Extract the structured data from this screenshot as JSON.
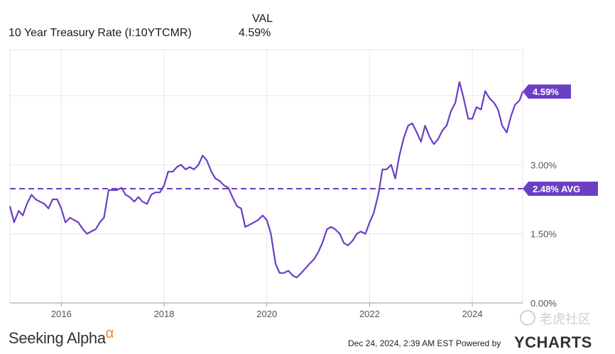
{
  "header": {
    "val_label": "VAL",
    "series_name": "10 Year Treasury Rate (I:10YTCMR)",
    "last_value_label": "4.59%"
  },
  "chart_data": {
    "type": "line",
    "title": "10 Year Treasury Rate (I:10YTCMR)",
    "xlabel": "",
    "ylabel": "",
    "x_ticks": [
      "2016",
      "2018",
      "2020",
      "2022",
      "2024"
    ],
    "y_ticks": [
      "0.00%",
      "1.50%",
      "3.00%"
    ],
    "xlim": [
      2015.0,
      2024.98
    ],
    "ylim": [
      0,
      5.5
    ],
    "series": [
      {
        "name": "10 Year Treasury Rate",
        "color": "#6a3fc4",
        "x": [
          2015.0,
          2015.08,
          2015.17,
          2015.25,
          2015.33,
          2015.42,
          2015.5,
          2015.58,
          2015.67,
          2015.75,
          2015.83,
          2015.92,
          2016.0,
          2016.08,
          2016.17,
          2016.25,
          2016.33,
          2016.42,
          2016.5,
          2016.58,
          2016.67,
          2016.75,
          2016.83,
          2016.92,
          2017.0,
          2017.08,
          2017.17,
          2017.25,
          2017.33,
          2017.42,
          2017.5,
          2017.58,
          2017.67,
          2017.75,
          2017.83,
          2017.92,
          2018.0,
          2018.08,
          2018.17,
          2018.25,
          2018.33,
          2018.42,
          2018.5,
          2018.58,
          2018.67,
          2018.75,
          2018.83,
          2018.92,
          2019.0,
          2019.08,
          2019.17,
          2019.25,
          2019.33,
          2019.42,
          2019.5,
          2019.58,
          2019.67,
          2019.75,
          2019.83,
          2019.92,
          2020.0,
          2020.08,
          2020.17,
          2020.25,
          2020.33,
          2020.42,
          2020.5,
          2020.58,
          2020.67,
          2020.75,
          2020.83,
          2020.92,
          2021.0,
          2021.08,
          2021.17,
          2021.25,
          2021.33,
          2021.42,
          2021.5,
          2021.58,
          2021.67,
          2021.75,
          2021.83,
          2021.92,
          2022.0,
          2022.08,
          2022.17,
          2022.25,
          2022.33,
          2022.42,
          2022.5,
          2022.58,
          2022.67,
          2022.75,
          2022.83,
          2022.92,
          2023.0,
          2023.08,
          2023.17,
          2023.25,
          2023.33,
          2023.42,
          2023.5,
          2023.58,
          2023.67,
          2023.75,
          2023.83,
          2023.92,
          2024.0,
          2024.08,
          2024.17,
          2024.25,
          2024.33,
          2024.42,
          2024.5,
          2024.58,
          2024.67,
          2024.75,
          2024.83,
          2024.92,
          2024.98
        ],
        "values": [
          2.1,
          1.75,
          2.0,
          1.9,
          2.15,
          2.35,
          2.25,
          2.2,
          2.15,
          2.05,
          2.25,
          2.25,
          2.05,
          1.75,
          1.85,
          1.8,
          1.75,
          1.6,
          1.5,
          1.55,
          1.6,
          1.75,
          1.85,
          2.45,
          2.45,
          2.45,
          2.5,
          2.35,
          2.3,
          2.2,
          2.3,
          2.2,
          2.15,
          2.35,
          2.4,
          2.4,
          2.55,
          2.85,
          2.85,
          2.95,
          3.0,
          2.9,
          2.95,
          2.9,
          3.0,
          3.2,
          3.1,
          2.85,
          2.7,
          2.65,
          2.55,
          2.5,
          2.3,
          2.1,
          2.05,
          1.65,
          1.7,
          1.75,
          1.8,
          1.9,
          1.8,
          1.5,
          0.85,
          0.65,
          0.65,
          0.7,
          0.6,
          0.55,
          0.65,
          0.75,
          0.85,
          0.95,
          1.1,
          1.3,
          1.6,
          1.65,
          1.6,
          1.5,
          1.3,
          1.25,
          1.35,
          1.5,
          1.55,
          1.5,
          1.75,
          1.95,
          2.35,
          2.9,
          2.9,
          3.0,
          2.7,
          3.2,
          3.6,
          3.85,
          3.9,
          3.7,
          3.5,
          3.85,
          3.6,
          3.45,
          3.55,
          3.75,
          3.85,
          4.15,
          4.35,
          4.8,
          4.45,
          4.0,
          4.0,
          4.25,
          4.2,
          4.6,
          4.45,
          4.35,
          4.2,
          3.85,
          3.7,
          4.05,
          4.3,
          4.4,
          4.59
        ]
      }
    ],
    "reference_line": {
      "value": 2.48,
      "label": "2.48% AVG",
      "style": "dashed",
      "color": "#6a3fc4"
    },
    "last_value_badge": {
      "value": 4.59,
      "label": "4.59%",
      "color": "#6a3fc4"
    },
    "grid": true
  },
  "footer": {
    "brand": "Seeking Alpha",
    "brand_mark": "α",
    "timestamp_text": "Dec 24, 2024, 2:39 AM EST Powered by",
    "powered_by": "YCHARTS",
    "watermark": "老虎社区",
    "accent_color": "#f08a1c"
  }
}
